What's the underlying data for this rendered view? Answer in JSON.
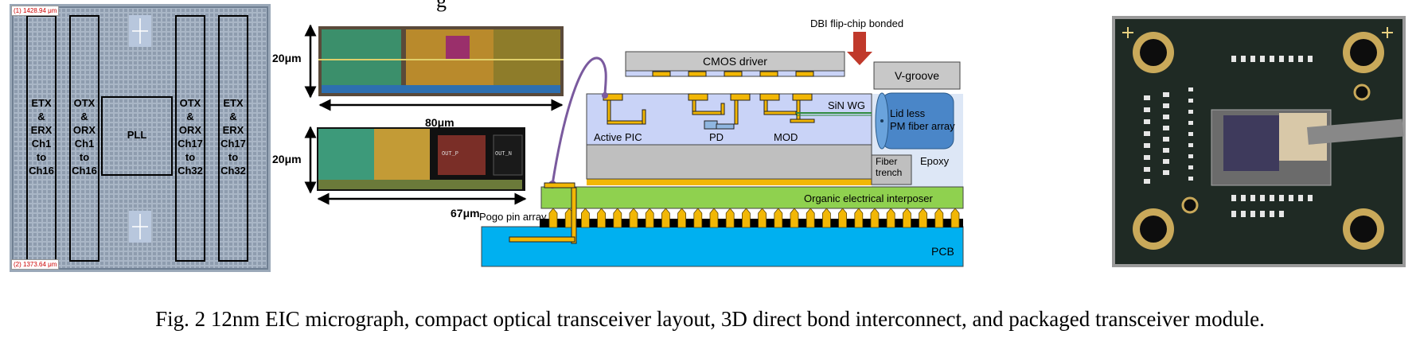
{
  "caption": "Fig. 2 12nm EIC micrograph, compact optical transceiver layout, 3D direct bond interconnect, and packaged transceiver module.",
  "top_partial_text": "g",
  "micrograph": {
    "dim_top": "1428.94 μm",
    "dim_bottom": "1373.64 μm",
    "marker_top": "(1)",
    "marker_bottom": "(2)",
    "blocks": [
      {
        "lines": [
          "ETX",
          "&",
          "ERX",
          "Ch1",
          "to",
          "Ch16"
        ]
      },
      {
        "lines": [
          "OTX",
          "&",
          "ORX",
          "Ch1",
          "to",
          "Ch16"
        ]
      },
      {
        "lines": [
          "PLL"
        ]
      },
      {
        "lines": [
          "OTX",
          "&",
          "ORX",
          "Ch17",
          "to",
          "Ch32"
        ]
      },
      {
        "lines": [
          "ETX",
          "&",
          "ERX",
          "Ch17",
          "to",
          "Ch32"
        ]
      }
    ]
  },
  "layouts": {
    "top": {
      "height": "20μm",
      "width": "80μm"
    },
    "bottom": {
      "height": "20μm",
      "width": "67μm",
      "labels": [
        "OUT_P",
        "OUT_N"
      ]
    }
  },
  "cross_section": {
    "dbi_label": "DBI flip-chip bonded",
    "cmos_driver": "CMOS driver",
    "v_groove": "V-groove",
    "sin_wg": "SiN WG",
    "lid_less_1": "Lid less",
    "lid_less_2": "PM fiber array",
    "active_pic": "Active PIC",
    "pd": "PD",
    "mod": "MOD",
    "epoxy": "Epoxy",
    "fiber_trench_1": "Fiber",
    "fiber_trench_2": "trench",
    "interposer": "Organic electrical interposer",
    "pogo": "Pogo pin array",
    "pcb": "PCB"
  },
  "colors": {
    "pic": "#c9d3f7",
    "interposer": "#8fd14f",
    "pcb": "#00b0f0",
    "gold": "#f2b705",
    "gray": "#bfbfbf",
    "fiber": "#4a86c8",
    "wire": "#7a5a9e",
    "dbi_arrow": "#c0392b"
  }
}
